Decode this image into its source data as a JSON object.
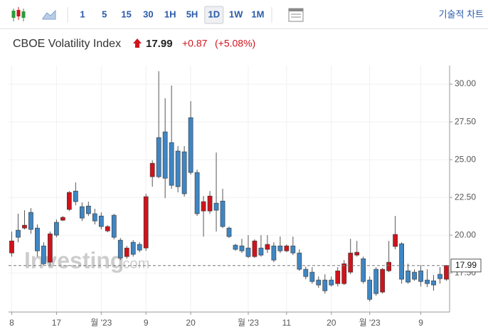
{
  "header": {
    "title": "CBOE Volatility Index",
    "price": "17.99",
    "change": "+0.87",
    "change_pct": "(+5.08%)"
  },
  "toolbar": {
    "intervals": [
      "1",
      "5",
      "15",
      "30",
      "1H",
      "5H",
      "1D",
      "1W",
      "1M"
    ],
    "selected_interval": "1D",
    "technical_chart": "기술적 차트"
  },
  "watermark": [
    "Investing",
    ".com"
  ],
  "chart_data": {
    "type": "candlestick",
    "up_color": "#d0131c",
    "down_color": "#3f86c3",
    "grid": true,
    "categories": [
      "8",
      null,
      null,
      null,
      null,
      null,
      null,
      "17",
      null,
      null,
      null,
      null,
      null,
      null,
      "월 '23",
      null,
      null,
      null,
      null,
      null,
      null,
      "9",
      null,
      null,
      null,
      null,
      null,
      null,
      "20",
      null,
      null,
      null,
      null,
      null,
      null,
      null,
      null,
      "월 '23",
      null,
      null,
      null,
      null,
      null,
      "11",
      null,
      null,
      null,
      null,
      null,
      null,
      "20",
      null,
      null,
      null,
      null,
      null,
      "월 '23",
      null,
      null,
      null,
      null,
      null,
      null,
      null,
      "9",
      null,
      null,
      null,
      null
    ],
    "open": [
      18.82,
      20.33,
      20.47,
      21.51,
      20.47,
      19.29,
      18.21,
      20.85,
      20.99,
      21.7,
      22.92,
      21.89,
      21.93,
      21.42,
      21.27,
      20.28,
      21.32,
      19.67,
      18.58,
      19.53,
      19.39,
      19.15,
      23.87,
      26.46,
      26.84,
      26.13,
      25.57,
      25.52,
      27.78,
      24.15,
      21.6,
      21.6,
      22.12,
      22.26,
      20.47,
      19.34,
      19.29,
      19.15,
      18.58,
      19.15,
      19.06,
      19.29,
      19.29,
      18.96,
      19.29,
      18.82,
      17.74,
      17.55,
      17.03,
      17.03,
      17.03,
      16.79,
      16.79,
      17.55,
      18.68,
      18.44,
      17.03,
      17.74,
      16.23,
      17.64,
      19.25,
      19.43,
      17.64,
      17.55,
      17.64,
      17.03,
      16.98,
      17.41,
      17.08
    ],
    "high": [
      20.24,
      21.42,
      21.65,
      21.79,
      20.71,
      19.53,
      20.24,
      21.04,
      21.27,
      22.92,
      23.49,
      22.17,
      22.22,
      21.75,
      21.51,
      20.66,
      21.42,
      19.81,
      19.29,
      19.67,
      19.53,
      22.74,
      24.95,
      30.85,
      29.06,
      29.91,
      25.9,
      25.9,
      28.87,
      24.34,
      22.59,
      22.92,
      25.47,
      23.07,
      20.57,
      19.43,
      19.76,
      20.0,
      19.72,
      20.0,
      20.0,
      19.53,
      19.91,
      19.39,
      19.91,
      19.06,
      17.92,
      17.88,
      17.26,
      17.41,
      17.26,
      17.88,
      18.35,
      19.76,
      19.62,
      18.58,
      17.26,
      17.88,
      17.83,
      19.62,
      21.27,
      19.53,
      18.11,
      17.74,
      18.02,
      17.74,
      17.36,
      17.88,
      18.02
    ],
    "low": [
      18.58,
      19.53,
      20.38,
      20.09,
      18.58,
      18.02,
      18.02,
      19.86,
      20.94,
      21.6,
      21.98,
      20.94,
      21.27,
      20.71,
      20.38,
      20.19,
      19.72,
      18.35,
      18.44,
      18.58,
      18.87,
      18.96,
      23.21,
      23.77,
      22.45,
      23.07,
      22.83,
      22.55,
      24.01,
      21.27,
      19.91,
      21.42,
      20.24,
      20.47,
      19.81,
      18.96,
      18.82,
      18.49,
      18.49,
      18.58,
      18.82,
      18.21,
      18.82,
      18.87,
      18.68,
      17.64,
      17.08,
      16.79,
      16.51,
      16.13,
      16.6,
      16.6,
      16.7,
      17.41,
      18.58,
      16.79,
      15.61,
      15.99,
      16.13,
      17.55,
      19.06,
      16.79,
      16.79,
      16.98,
      16.6,
      16.56,
      16.32,
      16.79,
      16.98
    ],
    "close": [
      19.62,
      19.86,
      20.66,
      20.38,
      18.96,
      18.11,
      20.09,
      20.0,
      21.18,
      22.83,
      22.22,
      21.13,
      21.42,
      20.94,
      20.57,
      20.57,
      19.86,
      18.49,
      19.15,
      18.73,
      19.01,
      22.55,
      24.76,
      23.87,
      23.77,
      23.3,
      23.21,
      22.74,
      24.15,
      21.42,
      22.22,
      22.59,
      21.65,
      20.57,
      19.91,
      19.06,
      18.96,
      18.58,
      19.62,
      18.68,
      19.39,
      18.35,
      18.96,
      19.29,
      18.82,
      17.74,
      17.26,
      16.93,
      16.7,
      16.32,
      16.7,
      17.64,
      18.11,
      18.82,
      18.87,
      16.93,
      15.75,
      16.13,
      17.74,
      18.21,
      20.05,
      17.08,
      16.89,
      17.08,
      16.93,
      16.79,
      16.7,
      17.12,
      17.99
    ],
    "ylim": [
      14.91,
      31.23
    ],
    "yticks": [
      {
        "value": 17.5,
        "label": "17.50"
      },
      {
        "value": 20,
        "label": "20.00"
      },
      {
        "value": 22.5,
        "label": "22.50"
      },
      {
        "value": 25,
        "label": "25.00"
      },
      {
        "value": 27.5,
        "label": "27.50"
      },
      {
        "value": 30,
        "label": "30.00"
      }
    ]
  }
}
